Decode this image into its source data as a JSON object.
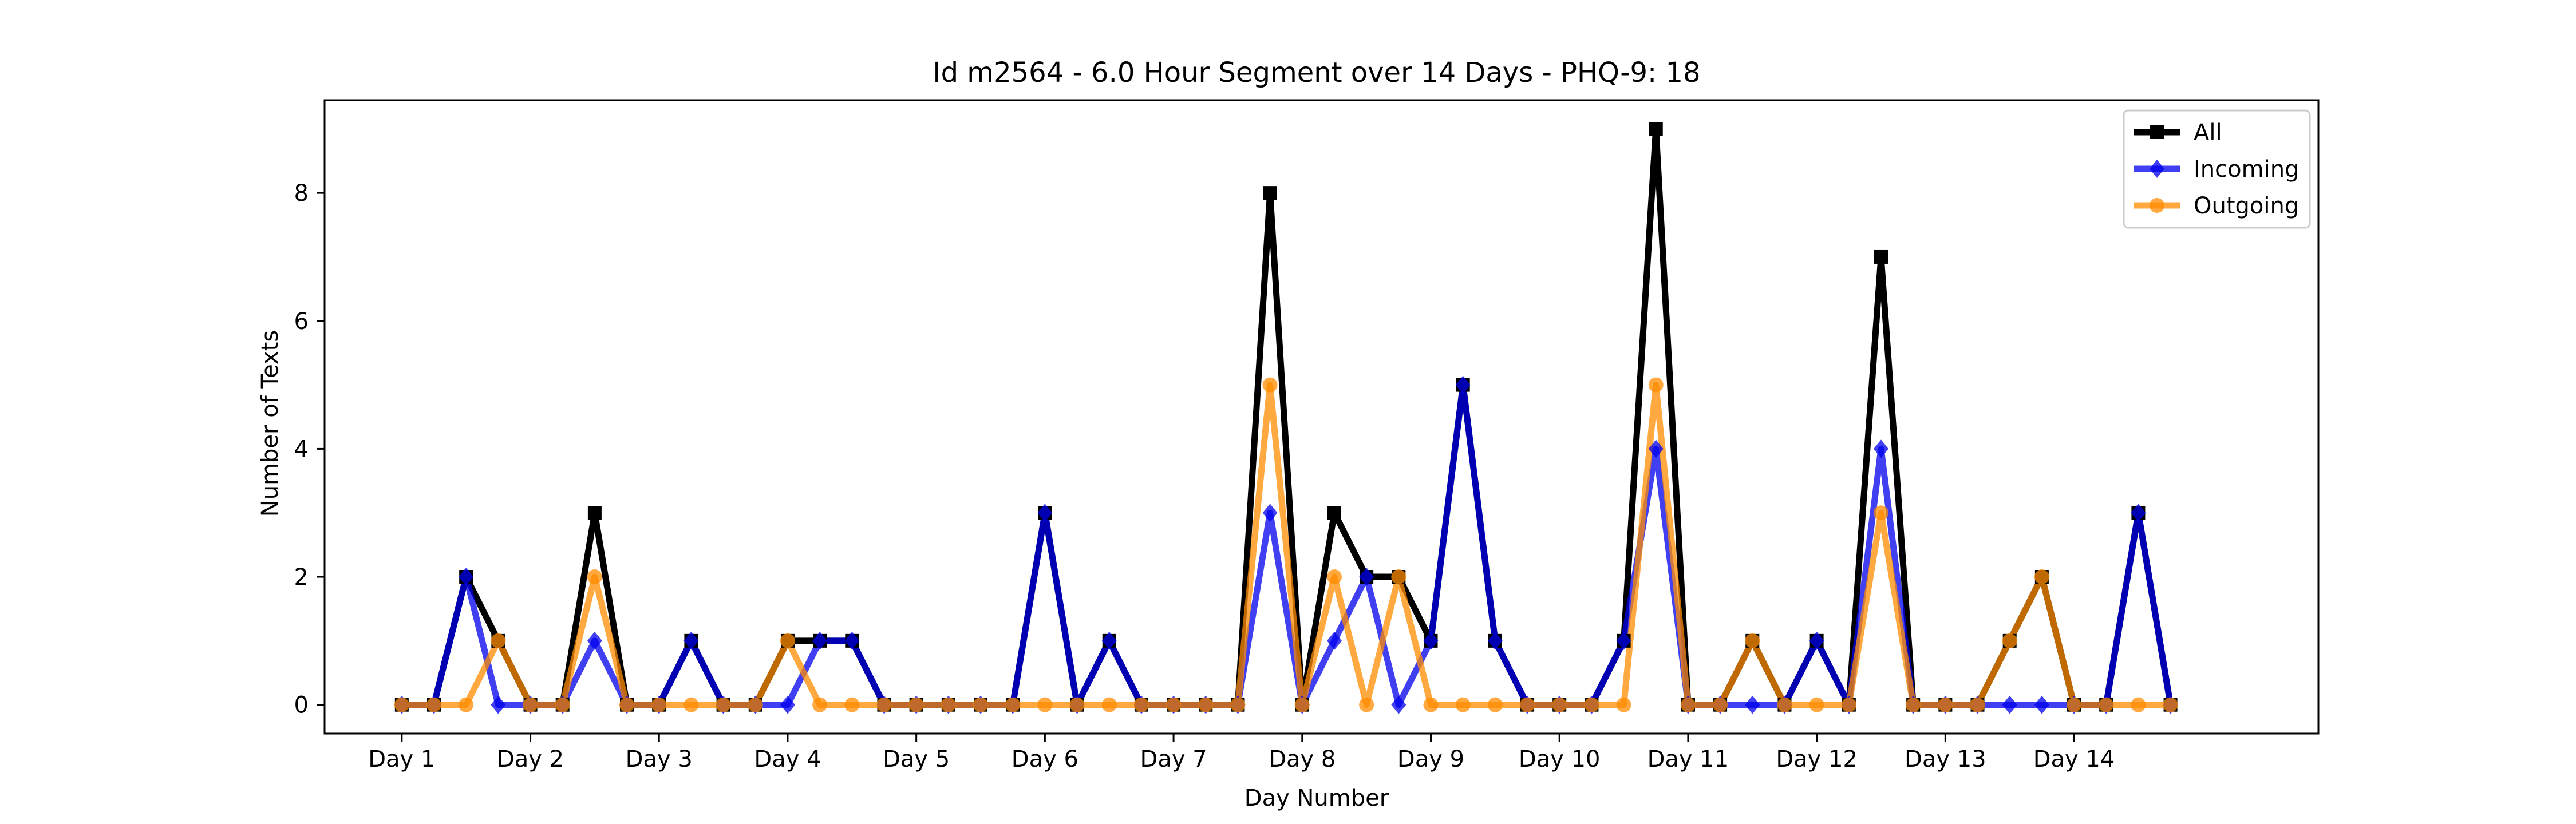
{
  "chart_data": {
    "type": "line",
    "title": "Id m2564 - 6.0 Hour Segment over 14 Days - PHQ-9: 18",
    "xlabel": "Day Number",
    "ylabel": "Number of Texts",
    "xlim": [
      -0.6,
      14.9
    ],
    "ylim": [
      -0.45,
      9.45
    ],
    "x_ticks": [
      0,
      1,
      2,
      3,
      4,
      5,
      6,
      7,
      8,
      9,
      10,
      11,
      12,
      13
    ],
    "x_tick_labels": [
      "Day 1",
      "Day 2",
      "Day 3",
      "Day 4",
      "Day 5",
      "Day 6",
      "Day 7",
      "Day 8",
      "Day 9",
      "Day 10",
      "Day 11",
      "Day 12",
      "Day 13",
      "Day 14"
    ],
    "y_ticks": [
      0,
      2,
      4,
      6,
      8
    ],
    "y_tick_labels": [
      "0",
      "2",
      "4",
      "6",
      "8"
    ],
    "x": [
      0,
      0.25,
      0.5,
      0.75,
      1,
      1.25,
      1.5,
      1.75,
      2,
      2.25,
      2.5,
      2.75,
      3,
      3.25,
      3.5,
      3.75,
      4,
      4.25,
      4.5,
      4.75,
      5,
      5.25,
      5.5,
      5.75,
      6,
      6.25,
      6.5,
      6.75,
      7,
      7.25,
      7.5,
      7.75,
      8,
      8.25,
      8.5,
      8.75,
      9,
      9.25,
      9.5,
      9.75,
      10,
      10.25,
      10.5,
      10.75,
      11,
      11.25,
      11.5,
      11.75,
      12,
      12.25,
      12.5,
      12.75,
      13,
      13.25,
      13.5,
      13.75
    ],
    "series": [
      {
        "name": "All",
        "color": "#000000",
        "marker": "square",
        "values": [
          0,
          0,
          2,
          1,
          0,
          0,
          3,
          0,
          0,
          1,
          0,
          0,
          1,
          1,
          1,
          0,
          0,
          0,
          0,
          0,
          3,
          0,
          1,
          0,
          0,
          0,
          0,
          8,
          0,
          3,
          2,
          2,
          1,
          5,
          1,
          0,
          0,
          0,
          1,
          9,
          0,
          0,
          1,
          0,
          1,
          0,
          7,
          0,
          0,
          0,
          1,
          2,
          0,
          0,
          3,
          0
        ]
      },
      {
        "name": "Incoming",
        "color": "#0000ee",
        "marker": "diamond",
        "values": [
          0,
          0,
          2,
          0,
          0,
          0,
          1,
          0,
          0,
          1,
          0,
          0,
          0,
          1,
          1,
          0,
          0,
          0,
          0,
          0,
          3,
          0,
          1,
          0,
          0,
          0,
          0,
          3,
          0,
          1,
          2,
          0,
          1,
          5,
          1,
          0,
          0,
          0,
          1,
          4,
          0,
          0,
          0,
          0,
          1,
          0,
          4,
          0,
          0,
          0,
          0,
          0,
          0,
          0,
          3,
          0
        ]
      },
      {
        "name": "Outgoing",
        "color": "#ff8c00",
        "marker": "circle",
        "values": [
          0,
          0,
          0,
          1,
          0,
          0,
          2,
          0,
          0,
          0,
          0,
          0,
          1,
          0,
          0,
          0,
          0,
          0,
          0,
          0,
          0,
          0,
          0,
          0,
          0,
          0,
          0,
          5,
          0,
          2,
          0,
          2,
          0,
          0,
          0,
          0,
          0,
          0,
          0,
          5,
          0,
          0,
          1,
          0,
          0,
          0,
          3,
          0,
          0,
          0,
          1,
          2,
          0,
          0,
          0,
          0
        ]
      }
    ],
    "legend_location": "top-right",
    "grid": false
  }
}
